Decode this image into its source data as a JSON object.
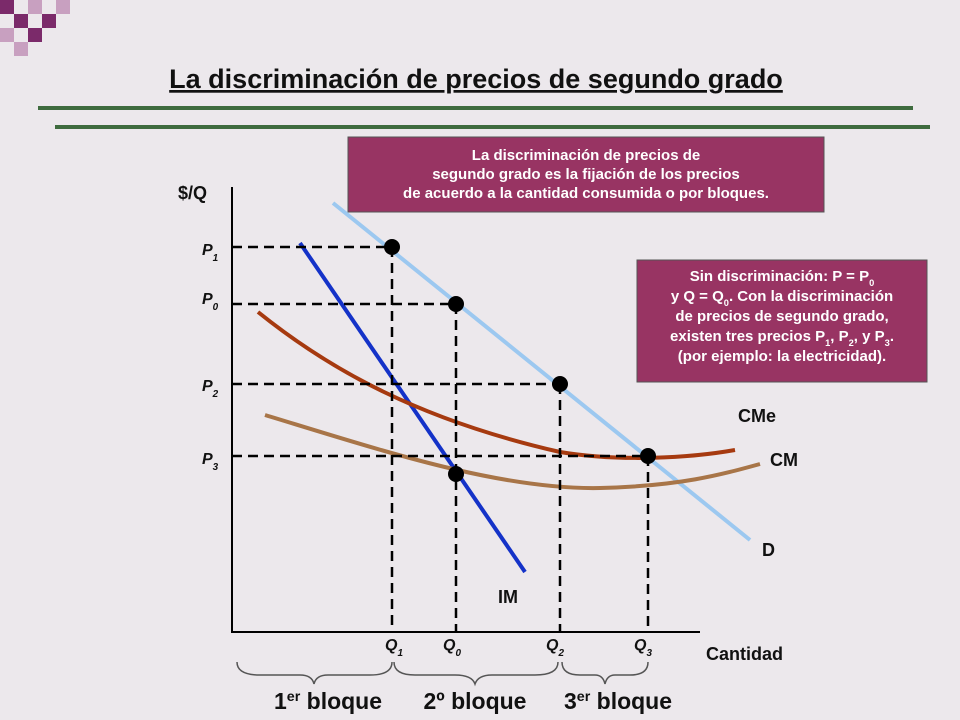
{
  "title": "La discriminación de precios de segundo grado",
  "definition_box": [
    [
      "La discriminación de precios de"
    ],
    [
      "segundo grado es la fijación de los precios"
    ],
    [
      "de acuerdo a la cantidad consumida o por bloques."
    ]
  ],
  "explanation_box": [
    [
      "Sin discriminación: P = P",
      {
        "text": "0",
        "sub": true
      }
    ],
    [
      "y Q = Q",
      {
        "text": "0",
        "sub": true
      },
      ". Con la discriminación"
    ],
    [
      "de precios de segundo grado,"
    ],
    [
      "existen tres precios P",
      {
        "text": "1",
        "sub": true
      },
      ", P",
      {
        "text": "2",
        "sub": true
      },
      ", y P",
      {
        "text": "3",
        "sub": true
      },
      "."
    ],
    [
      "(por ejemplo: la electricidad)."
    ]
  ],
  "axis_labels": {
    "y": "$/Q",
    "x": "Cantidad"
  },
  "curve_labels": {
    "average_cost": "CMe",
    "marginal_cost": "CM",
    "demand": "D",
    "marginal_revenue": "IM"
  },
  "price_labels": [
    [
      "P",
      {
        "text": "1",
        "sub": true
      }
    ],
    [
      "P",
      {
        "text": "0",
        "sub": true
      }
    ],
    [
      "P",
      {
        "text": "2",
        "sub": true
      }
    ],
    [
      "P",
      {
        "text": "3",
        "sub": true
      }
    ]
  ],
  "quantity_labels": [
    [
      "Q",
      {
        "text": "1",
        "sub": true
      }
    ],
    [
      "Q",
      {
        "text": "0",
        "sub": true
      }
    ],
    [
      "Q",
      {
        "text": "2",
        "sub": true
      }
    ],
    [
      "Q",
      {
        "text": "3",
        "sub": true
      }
    ]
  ],
  "block_labels": [
    [
      "1",
      {
        "text": "er",
        "sup": true
      },
      " bloque"
    ],
    [
      "2º bloque"
    ],
    [
      "3",
      {
        "text": "er",
        "sup": true
      },
      " bloque"
    ]
  ]
}
